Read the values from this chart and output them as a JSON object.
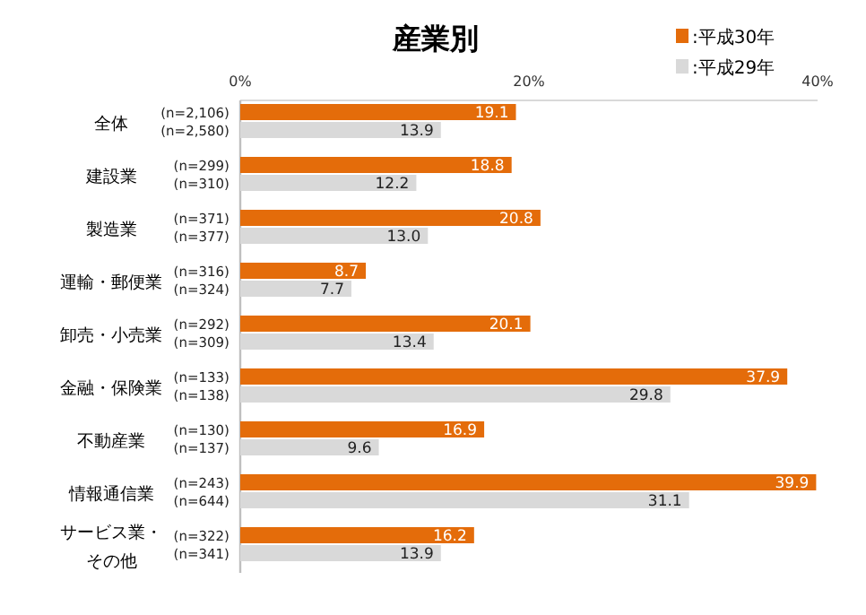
{
  "chart_data": {
    "type": "bar",
    "orientation": "horizontal",
    "title": "産業別",
    "categories": [
      "全体",
      "建設業",
      "製造業",
      "運輸・郵便業",
      "卸売・小売業",
      "金融・保険業",
      "不動産業",
      "情報通信業",
      "サービス業・その他"
    ],
    "series": [
      {
        "name": ":平成30年",
        "color": "#e46c0a",
        "values": [
          19.1,
          18.8,
          20.8,
          8.7,
          20.1,
          37.9,
          16.9,
          39.9,
          16.2
        ],
        "value_labels": [
          "19.1",
          "18.8",
          "20.8",
          "8.7",
          "20.1",
          "37.9",
          "16.9",
          "39.9",
          "16.2"
        ]
      },
      {
        "name": ":平成29年",
        "color": "#d9d9d9",
        "values": [
          13.9,
          12.2,
          13.0,
          7.7,
          13.4,
          29.8,
          9.6,
          31.1,
          13.9
        ],
        "value_labels": [
          "13.9",
          "12.2",
          "13.0",
          "7.7",
          "13.4",
          "29.8",
          "9.6",
          "31.1",
          "13.9"
        ]
      }
    ],
    "xlim": [
      0,
      40
    ],
    "xticks": [
      {
        "value": 0,
        "label": "0%"
      },
      {
        "value": 20,
        "label": "20%"
      },
      {
        "value": 40,
        "label": "40%"
      }
    ],
    "legend": "top right",
    "grid": false,
    "annotations": [
      "(n=2,106)",
      "(n=2,580)",
      "(n=299)",
      "(n=310)",
      "(n=371)",
      "(n=377)",
      "(n=316)",
      "(n=324)",
      "(n=292)",
      "(n=309)",
      "(n=133)",
      "(n=138)",
      "(n=130)",
      "(n=137)",
      "(n=243)",
      "(n=644)",
      "(n=322)",
      "(n=341)"
    ]
  }
}
